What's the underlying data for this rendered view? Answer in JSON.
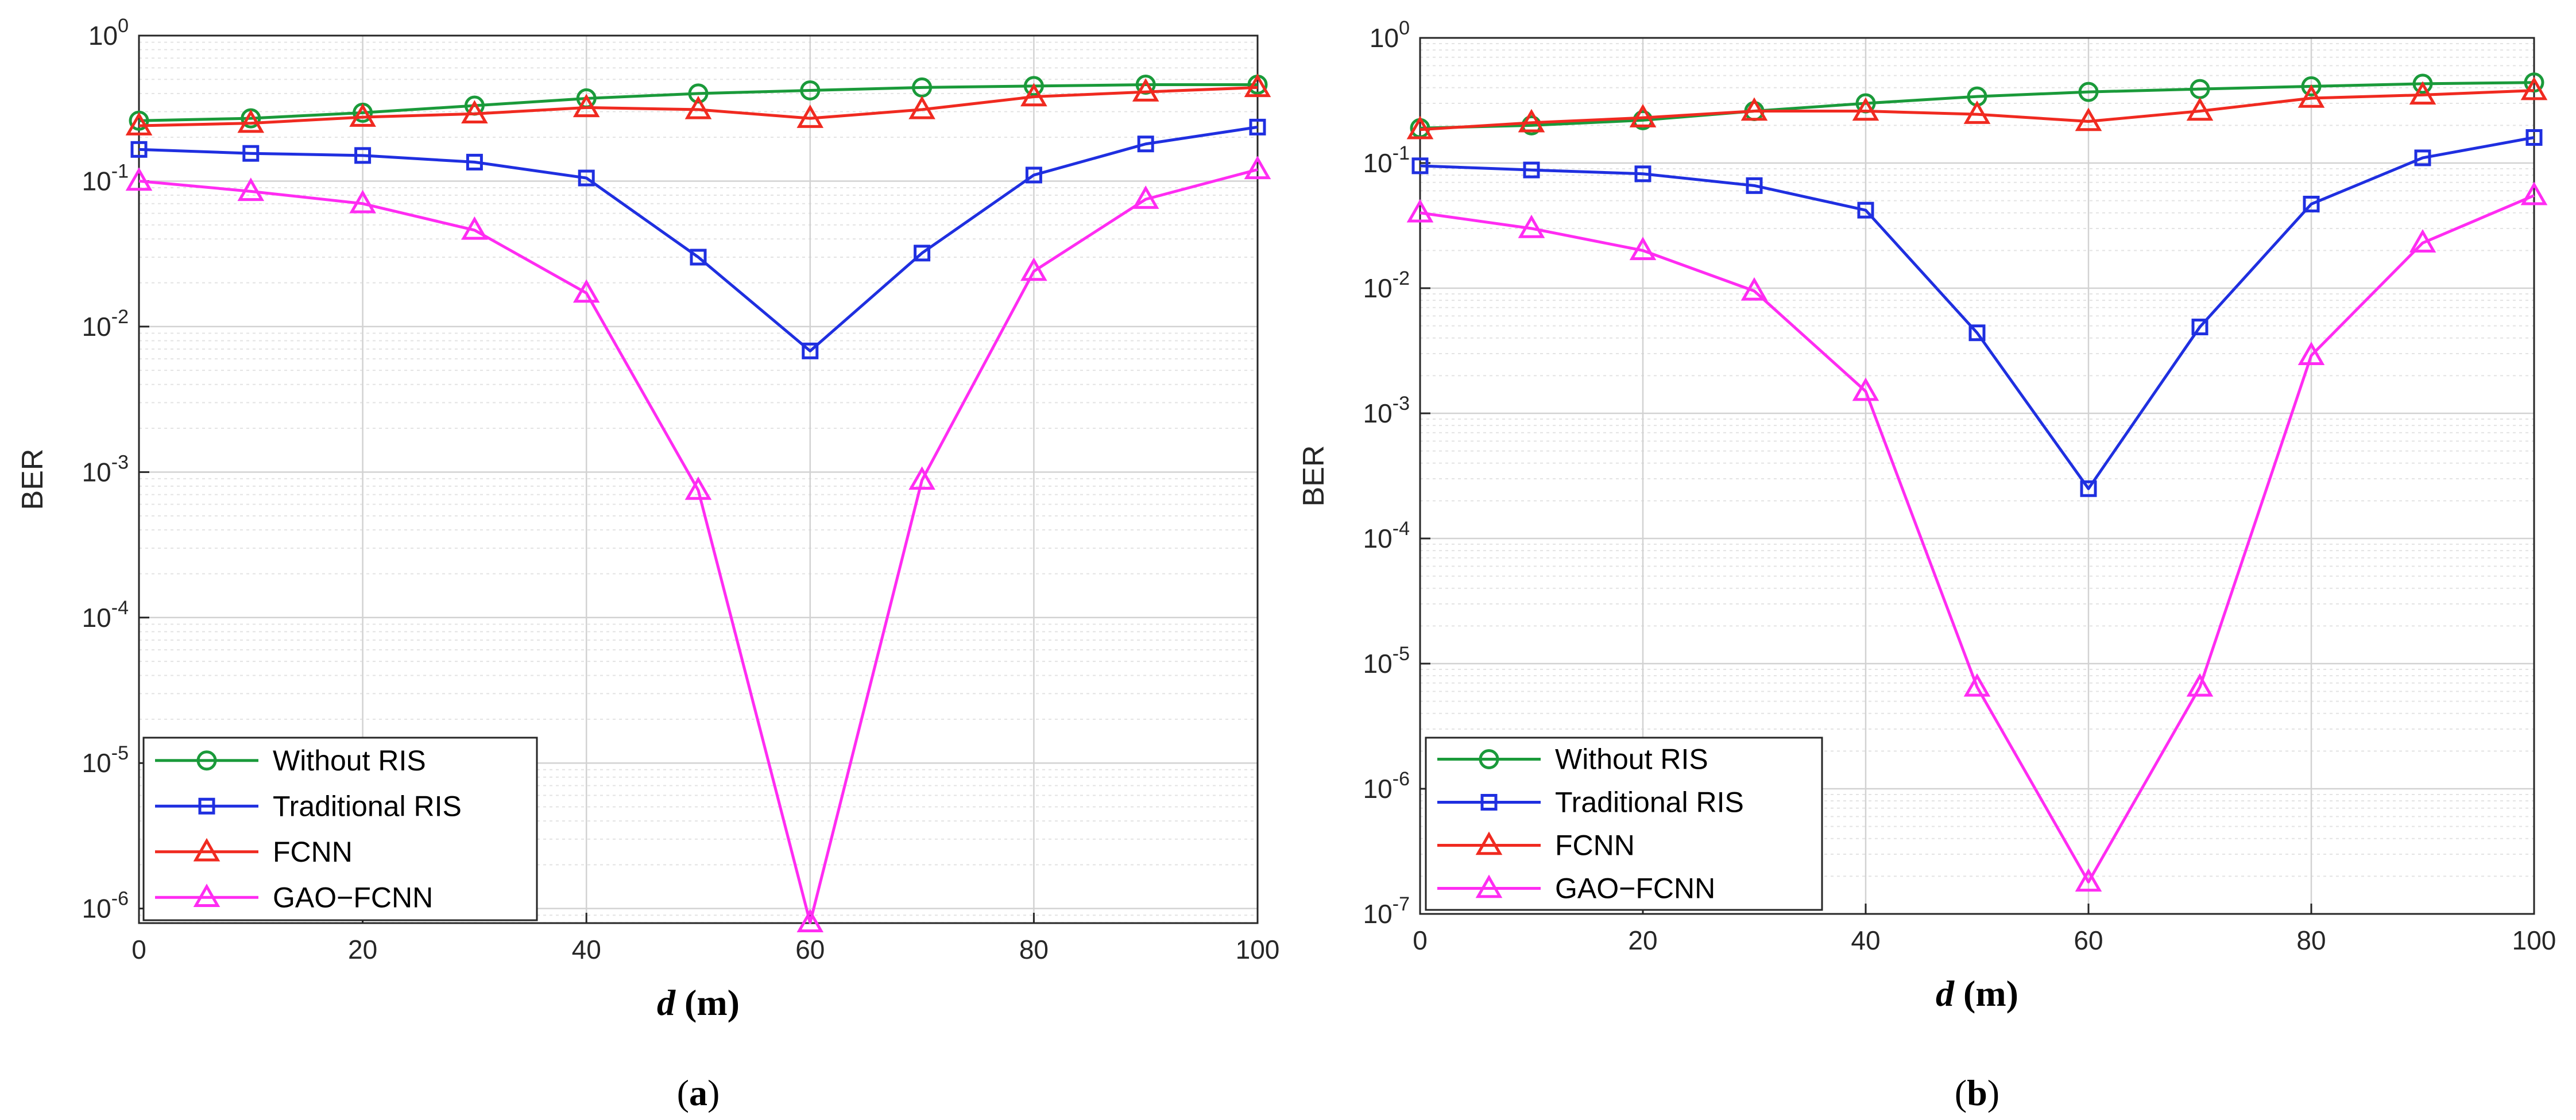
{
  "chart_data": [
    {
      "type": "line",
      "panel_label": "a",
      "xlabel": "d",
      "xlabel_unit": " (m)",
      "ylabel": "BER",
      "xlim": [
        0,
        100
      ],
      "xticks": [
        "0",
        "20",
        "40",
        "60",
        "80",
        "100"
      ],
      "ylim_log10": [
        -6.1,
        0
      ],
      "yticks": [
        {
          "base": "10",
          "exp": "-6"
        },
        {
          "base": "10",
          "exp": "-5"
        },
        {
          "base": "10",
          "exp": "-4"
        },
        {
          "base": "10",
          "exp": "-3"
        },
        {
          "base": "10",
          "exp": "-2"
        },
        {
          "base": "10",
          "exp": "-1"
        },
        {
          "base": "10",
          "exp": "0"
        }
      ],
      "grid": true,
      "legend_position": "bottom-left",
      "x": [
        0,
        10,
        20,
        30,
        40,
        50,
        60,
        70,
        80,
        90,
        100
      ],
      "series": [
        {
          "name": "Without RIS",
          "color": "#1a9a3a",
          "marker": "circle",
          "values": [
            0.26,
            0.27,
            0.295,
            0.33,
            0.37,
            0.4,
            0.42,
            0.44,
            0.45,
            0.46,
            0.46
          ]
        },
        {
          "name": "Traditional RIS",
          "color": "#1f2fe0",
          "marker": "square",
          "values": [
            0.165,
            0.155,
            0.15,
            0.135,
            0.105,
            0.03,
            0.0068,
            0.032,
            0.11,
            0.18,
            0.235
          ]
        },
        {
          "name": "FCNN",
          "color": "#f02a20",
          "marker": "triangle",
          "values": [
            0.24,
            0.25,
            0.275,
            0.29,
            0.32,
            0.31,
            0.27,
            0.31,
            0.38,
            0.41,
            0.44
          ]
        },
        {
          "name": "GAO−FCNN",
          "color": "#ff2cf2",
          "marker": "triangle",
          "values": [
            0.1,
            0.085,
            0.07,
            0.046,
            0.017,
            0.00075,
            8e-07,
            0.00088,
            0.024,
            0.075,
            0.12
          ]
        }
      ]
    },
    {
      "type": "line",
      "panel_label": "b",
      "xlabel": "d",
      "xlabel_unit": " (m)",
      "ylabel": "BER",
      "xlim": [
        0,
        100
      ],
      "xticks": [
        "0",
        "20",
        "40",
        "60",
        "80",
        "100"
      ],
      "ylim_log10": [
        -7,
        0
      ],
      "yticks": [
        {
          "base": "10",
          "exp": "-7"
        },
        {
          "base": "10",
          "exp": "-6"
        },
        {
          "base": "10",
          "exp": "-5"
        },
        {
          "base": "10",
          "exp": "-4"
        },
        {
          "base": "10",
          "exp": "-3"
        },
        {
          "base": "10",
          "exp": "-2"
        },
        {
          "base": "10",
          "exp": "-1"
        },
        {
          "base": "10",
          "exp": "0"
        }
      ],
      "grid": true,
      "legend_position": "bottom-left",
      "x": [
        0,
        10,
        20,
        30,
        40,
        50,
        60,
        70,
        80,
        90,
        100
      ],
      "series": [
        {
          "name": "Without RIS",
          "color": "#1a9a3a",
          "marker": "circle",
          "values": [
            0.19,
            0.2,
            0.22,
            0.26,
            0.3,
            0.34,
            0.37,
            0.39,
            0.41,
            0.43,
            0.44
          ]
        },
        {
          "name": "Traditional RIS",
          "color": "#1f2fe0",
          "marker": "square",
          "values": [
            0.095,
            0.088,
            0.082,
            0.066,
            0.042,
            0.0044,
            0.00025,
            0.0049,
            0.047,
            0.11,
            0.16
          ]
        },
        {
          "name": "FCNN",
          "color": "#f02a20",
          "marker": "triangle",
          "values": [
            0.185,
            0.21,
            0.23,
            0.26,
            0.26,
            0.245,
            0.215,
            0.26,
            0.33,
            0.35,
            0.38
          ]
        },
        {
          "name": "GAO−FCNN",
          "color": "#ff2cf2",
          "marker": "triangle",
          "values": [
            0.04,
            0.03,
            0.02,
            0.0095,
            0.0015,
            6.5e-06,
            1.8e-07,
            6.5e-06,
            0.0029,
            0.023,
            0.055
          ]
        }
      ]
    }
  ]
}
